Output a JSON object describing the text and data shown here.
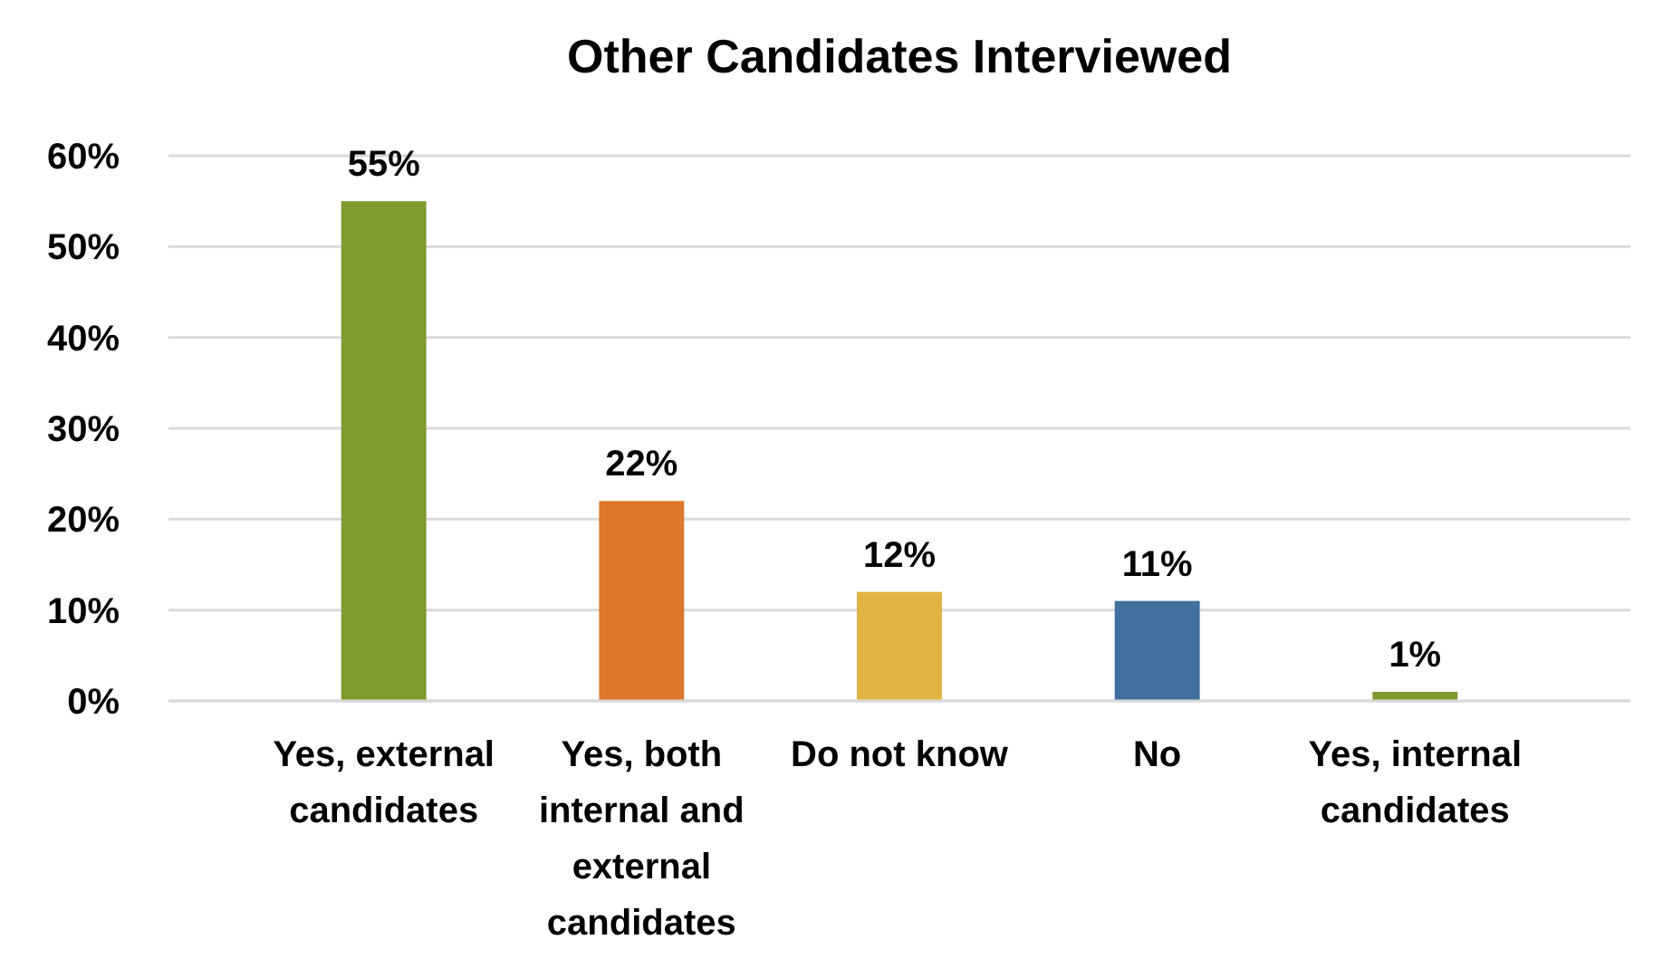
{
  "chart_data": {
    "type": "bar",
    "title": "Other Candidates Interviewed",
    "categories": [
      "Yes, external candidates",
      "Yes, both internal and external candidates",
      "Do not know",
      "No",
      "Yes, internal candidates"
    ],
    "values": [
      55,
      22,
      12,
      11,
      1
    ],
    "colors": [
      "#7f9a2e",
      "#dc772d",
      "#e0b441",
      "#42709e",
      "#7f9a2e"
    ],
    "value_labels": [
      "55%",
      "22%",
      "12%",
      "11%",
      "1%"
    ],
    "ylim": [
      0,
      60
    ],
    "yticks": [
      {
        "value": 0,
        "label": "0%"
      },
      {
        "value": 10,
        "label": "10%"
      },
      {
        "value": 20,
        "label": "20%"
      },
      {
        "value": 30,
        "label": "30%"
      },
      {
        "value": 40,
        "label": "40%"
      },
      {
        "value": 50,
        "label": "50%"
      },
      {
        "value": 60,
        "label": "60%"
      }
    ],
    "grid": "y"
  }
}
